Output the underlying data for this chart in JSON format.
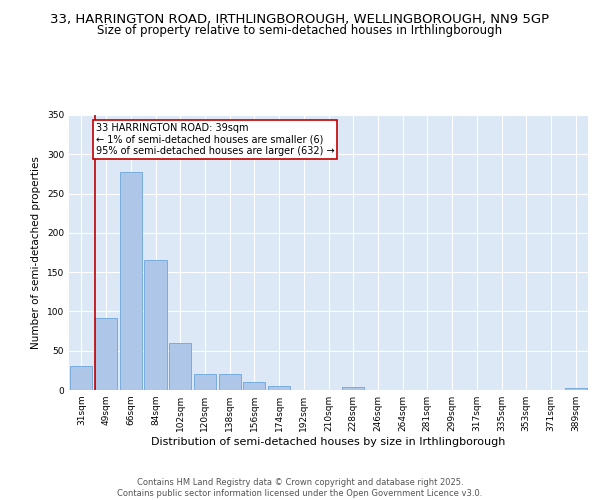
{
  "title": "33, HARRINGTON ROAD, IRTHLINGBOROUGH, WELLINGBOROUGH, NN9 5GP",
  "subtitle": "Size of property relative to semi-detached houses in Irthlingborough",
  "xlabel": "Distribution of semi-detached houses by size in Irthlingborough",
  "ylabel": "Number of semi-detached properties",
  "categories": [
    "31sqm",
    "49sqm",
    "66sqm",
    "84sqm",
    "102sqm",
    "120sqm",
    "138sqm",
    "156sqm",
    "174sqm",
    "192sqm",
    "210sqm",
    "228sqm",
    "246sqm",
    "264sqm",
    "281sqm",
    "299sqm",
    "317sqm",
    "335sqm",
    "353sqm",
    "371sqm",
    "389sqm"
  ],
  "values": [
    30,
    92,
    278,
    165,
    60,
    20,
    20,
    10,
    5,
    0,
    0,
    4,
    0,
    0,
    0,
    0,
    0,
    0,
    0,
    0,
    2
  ],
  "bar_color": "#aec6e8",
  "bar_edge_color": "#5b9bd5",
  "highlight_color": "#c00000",
  "annotation_text": "33 HARRINGTON ROAD: 39sqm\n← 1% of semi-detached houses are smaller (6)\n95% of semi-detached houses are larger (632) →",
  "annotation_box_color": "#c00000",
  "ylim": [
    0,
    350
  ],
  "yticks": [
    0,
    50,
    100,
    150,
    200,
    250,
    300,
    350
  ],
  "background_color": "#dce8f5",
  "grid_color": "#ffffff",
  "footer_text": "Contains HM Land Registry data © Crown copyright and database right 2025.\nContains public sector information licensed under the Open Government Licence v3.0.",
  "title_fontsize": 9.5,
  "subtitle_fontsize": 8.5,
  "xlabel_fontsize": 8,
  "ylabel_fontsize": 7.5,
  "tick_fontsize": 6.5,
  "annotation_fontsize": 7,
  "footer_fontsize": 6
}
